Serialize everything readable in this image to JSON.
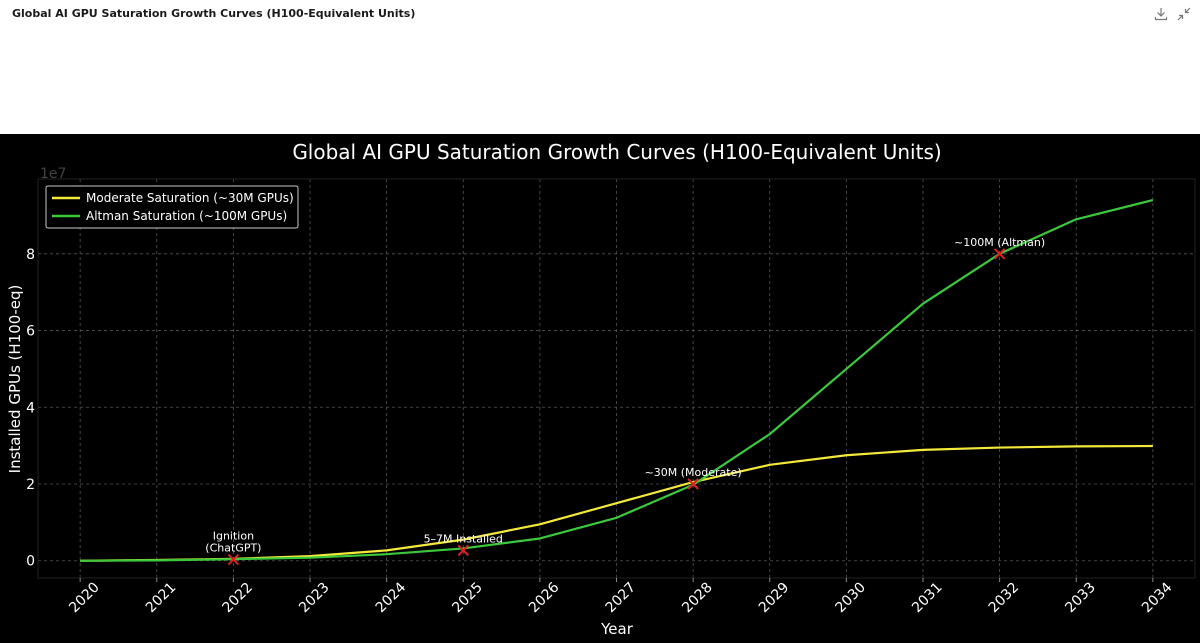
{
  "window": {
    "title": "Global AI GPU Saturation Growth Curves (H100-Equivalent Units)",
    "download_icon": "download-icon",
    "collapse_icon": "collapse-icon"
  },
  "colors": {
    "moderate": "#f2e93a",
    "altman": "#3cc83c",
    "marker": "#e02020",
    "background": "#000000",
    "grid": "#555555"
  },
  "chart_data": {
    "type": "line",
    "title": "Global AI GPU Saturation Growth Curves (H100-Equivalent Units)",
    "xlabel": "Year",
    "ylabel": "Installed GPUs (H100-eq)",
    "y_scale_label": "1e7",
    "x": [
      2020,
      2021,
      2022,
      2023,
      2024,
      2025,
      2026,
      2027,
      2028,
      2029,
      2030,
      2031,
      2032,
      2033,
      2034
    ],
    "xlim": [
      2019.45,
      2034.55
    ],
    "ylim": [
      -0.45,
      9.95
    ],
    "yticks": [
      0,
      2,
      4,
      6,
      8
    ],
    "ytick_labels": [
      "0",
      "2",
      "4",
      "6",
      "8"
    ],
    "grid": true,
    "legend_position": "top-left",
    "series": [
      {
        "name": "Moderate Saturation (~30M GPUs)",
        "values": [
          0.0,
          0.02,
          0.05,
          0.12,
          0.27,
          0.55,
          0.95,
          1.5,
          2.05,
          2.5,
          2.75,
          2.89,
          2.95,
          2.98,
          2.99
        ]
      },
      {
        "name": "Altman Saturation (~100M GPUs)",
        "values": [
          0.0,
          0.01,
          0.04,
          0.08,
          0.17,
          0.32,
          0.58,
          1.12,
          1.98,
          3.3,
          5.0,
          6.7,
          8.0,
          8.9,
          9.4
        ]
      }
    ],
    "annotations": [
      {
        "label_lines": [
          "Ignition",
          "(ChatGPT)"
        ],
        "x": 2022,
        "y": 0.03
      },
      {
        "label_lines": [
          "5–7M Installed"
        ],
        "x": 2025,
        "y": 0.27
      },
      {
        "label_lines": [
          "~30M (Moderate)"
        ],
        "x": 2028,
        "y": 2.0
      },
      {
        "label_lines": [
          "~100M (Altman)"
        ],
        "x": 2032,
        "y": 8.0
      }
    ]
  }
}
